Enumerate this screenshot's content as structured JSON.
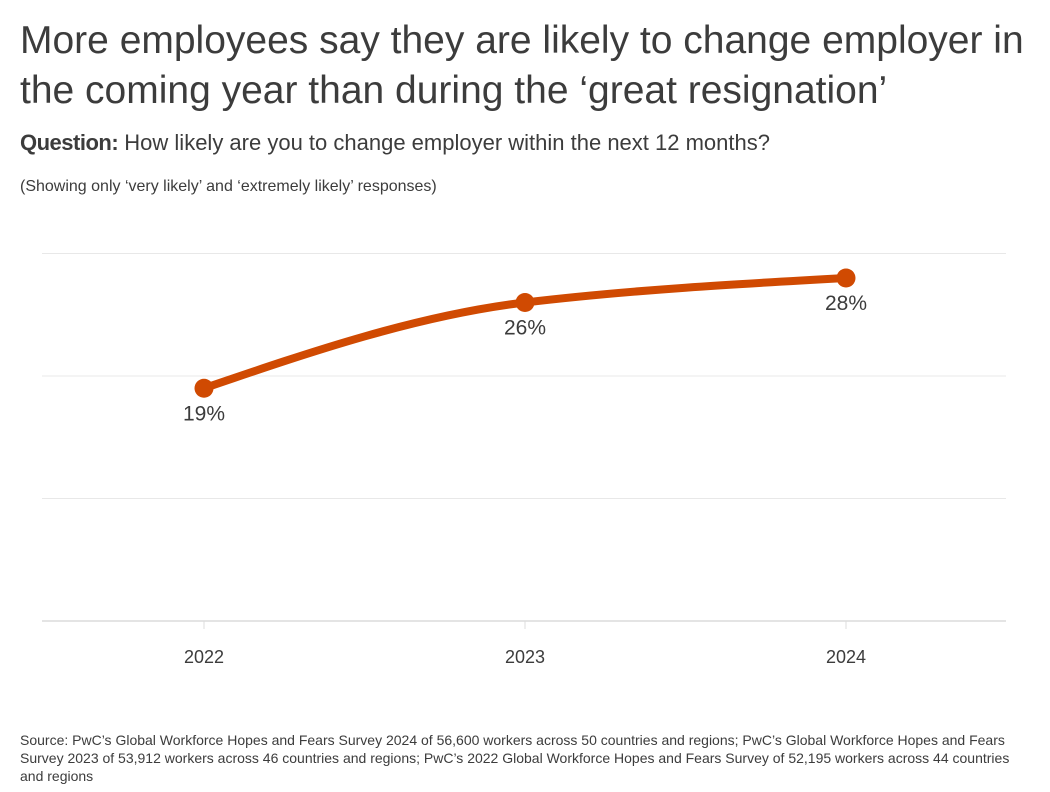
{
  "header": {
    "title": "More employees say they are likely to change employer in the coming year than during the ‘great resignation’",
    "question_label": "Question:",
    "question_text": "How likely are you to change employer within the next 12 months?",
    "note": "(Showing only ‘very likely’ and ‘extremely likely’ responses)"
  },
  "chart_data": {
    "type": "line",
    "categories": [
      "2022",
      "2023",
      "2024"
    ],
    "values": [
      19,
      26,
      28
    ],
    "data_labels": [
      "19%",
      "26%",
      "28%"
    ],
    "ylim": [
      0,
      30
    ],
    "yticks": [
      0,
      10,
      20,
      30
    ],
    "grid": true,
    "smooth": true,
    "color": "#d04a02"
  },
  "footer": {
    "source": "Source: PwC’s Global Workforce Hopes and Fears Survey 2024 of 56,600 workers across 50 countries and regions; PwC’s Global Workforce Hopes and Fears Survey 2023 of 53,912 workers across 46 countries and regions; PwC’s 2022 Global Workforce Hopes and Fears Survey of 52,195 workers across 44 countries and regions"
  }
}
